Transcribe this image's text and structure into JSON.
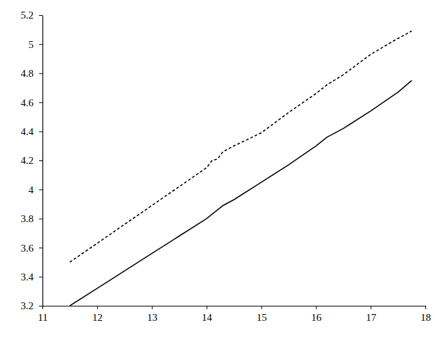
{
  "chart_data": {
    "type": "line",
    "x": [
      11.5,
      12,
      12.5,
      13,
      13.5,
      14,
      14.1,
      14.2,
      14.3,
      14.5,
      15,
      15.5,
      16,
      16.2,
      16.5,
      17,
      17.5,
      17.75
    ],
    "series": [
      {
        "color": "#000000",
        "line_style": "dashed",
        "values": [
          3.5,
          3.63,
          3.76,
          3.89,
          4.02,
          4.15,
          4.2,
          4.21,
          4.26,
          4.3,
          4.39,
          4.53,
          4.66,
          4.72,
          4.79,
          4.93,
          5.04,
          5.09
        ]
      },
      {
        "color": "#000000",
        "line_style": "solid",
        "values": [
          3.2,
          3.32,
          3.44,
          3.56,
          3.68,
          3.8,
          3.83,
          3.86,
          3.89,
          3.93,
          4.05,
          4.17,
          4.3,
          4.36,
          4.42,
          4.54,
          4.67,
          4.75
        ]
      }
    ],
    "xlim": [
      11,
      18
    ],
    "xticks": [
      11,
      12,
      13,
      14,
      15,
      16,
      17,
      18
    ],
    "ylim": [
      3.2,
      5.2
    ],
    "yticks": [
      3.2,
      3.4,
      3.6,
      3.8,
      4,
      4.2,
      4.4,
      4.6,
      4.8,
      5,
      5.2
    ],
    "grid": false
  }
}
